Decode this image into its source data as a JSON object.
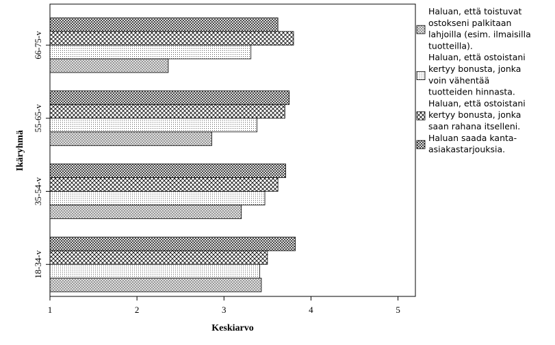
{
  "chart_data": {
    "type": "bar",
    "orientation": "horizontal",
    "title": "",
    "xlabel": "Keskiarvo",
    "ylabel": "Ikäryhmä",
    "xlim": [
      1,
      5.2
    ],
    "xticks": [
      1,
      2,
      3,
      4,
      5
    ],
    "categories": [
      "66-75-v",
      "55-65-v",
      "35-54-v",
      "18-34-v"
    ],
    "legend_position": "right",
    "series": [
      {
        "name": "Haluan saada kanta-asiakastarjouksia.",
        "legend_lines": [
          "Haluan saada kanta-",
          "asiakastarjouksia."
        ],
        "pattern": "dark-crosshatch",
        "values": [
          3.62,
          3.75,
          3.71,
          3.82
        ]
      },
      {
        "name": "Haluan, että ostoistani kertyy bonusta, jonka saan rahana itselleni.",
        "legend_lines": [
          "Haluan, että ostoistani",
          "kertyy bonusta, jonka",
          "saan rahana itselleni."
        ],
        "pattern": "light-crosshatch",
        "values": [
          3.8,
          3.7,
          3.62,
          3.5
        ]
      },
      {
        "name": "Haluan, että ostoistani kertyy bonusta, jonka voin vähentää tuotteiden hinnasta.",
        "legend_lines": [
          "Haluan, että ostoistani",
          "kertyy bonusta, jonka",
          "voin vähentää",
          "tuotteiden hinnasta."
        ],
        "pattern": "dots",
        "values": [
          3.31,
          3.38,
          3.47,
          3.41
        ]
      },
      {
        "name": "Haluan, että toistuvat ostokseni palkitaan lahjoilla (esim. ilmaisilla tuotteilla).",
        "legend_lines": [
          "Haluan, että toistuvat",
          "ostokseni palkitaan",
          "lahjoilla (esim. ilmaisilla",
          "tuotteilla)."
        ],
        "pattern": "medium-crosshatch",
        "values": [
          2.36,
          2.86,
          3.2,
          3.43
        ]
      }
    ],
    "legend_order": [
      3,
      2,
      1,
      0
    ]
  }
}
